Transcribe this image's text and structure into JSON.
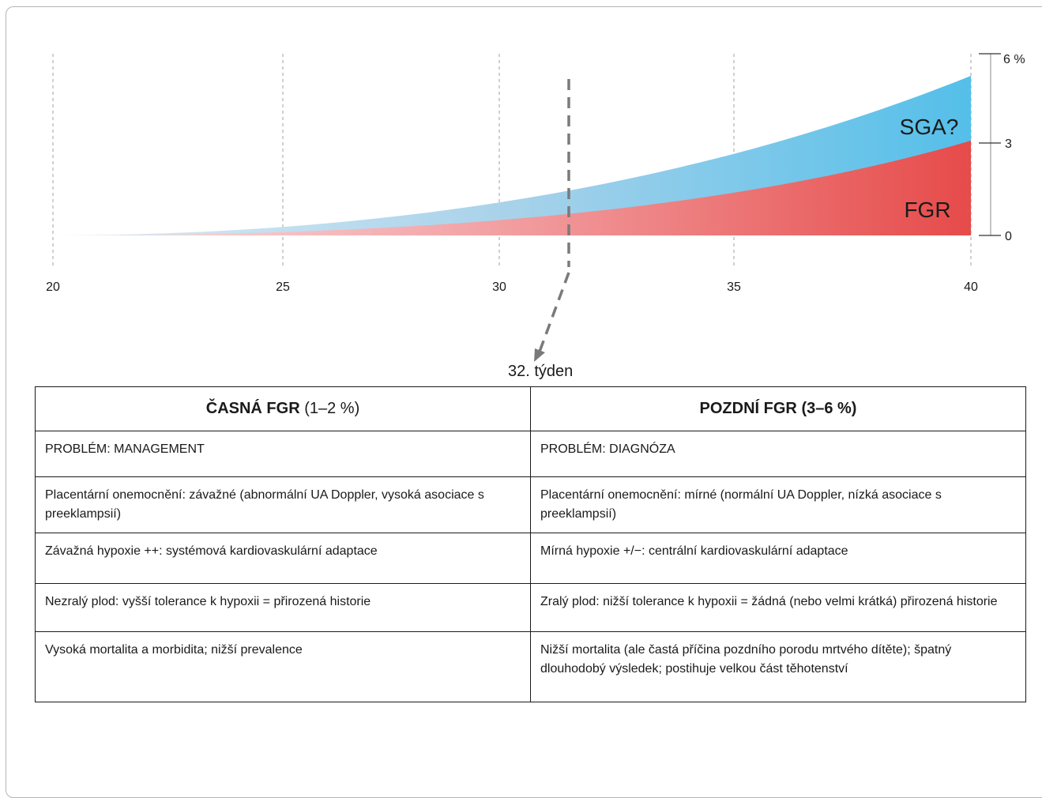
{
  "chart": {
    "x_ticks": [
      "20",
      "25",
      "30",
      "35",
      "40"
    ],
    "y_ticks": [
      "6 %",
      "3",
      "0"
    ],
    "series": [
      {
        "name": "SGA?",
        "color_light": "#b9dbee",
        "color_dark": "#54bfe9"
      },
      {
        "name": "FGR",
        "color_light": "#f7c4c6",
        "color_dark": "#e64b4a"
      }
    ],
    "week_label": "32. týden"
  },
  "table": {
    "headers": [
      {
        "strong": "ČASNÁ FGR",
        "normal": " (1–2 %)",
        "strong_b": ""
      },
      {
        "strong": "POZDNÍ FGR",
        "normal": " ",
        "strong_b": "(3–6 %)"
      }
    ],
    "rows": [
      [
        "PROBLÉM: MANAGEMENT",
        "PROBLÉM: DIAGNÓZA"
      ],
      [
        "Placentární onemocnění: závažné (abnormální UA Doppler, vysoká asociace s preeklampsií)",
        "Placentární onemocnění: mírné (normální UA Doppler, nízká asociace s preeklampsií)"
      ],
      [
        "Závažná hypoxie ++: systémová kardiovaskulární adaptace",
        "Mírná hypoxie +/−: centrální kardiovaskulární adaptace"
      ],
      [
        "Nezralý plod: vyšší tolerance k hypoxii = přirozená historie",
        "Zralý plod: nižší tolerance k hypoxii = žádná (nebo velmi krátká) přirozená historie"
      ],
      [
        "Vysoká mortalita a morbidita; nižší prevalence",
        "Nižší mortalita (ale častá příčina pozdního porodu mrtvého dítěte); špatný dlouhodobý výsledek; postihuje velkou část těhotenství"
      ]
    ]
  }
}
